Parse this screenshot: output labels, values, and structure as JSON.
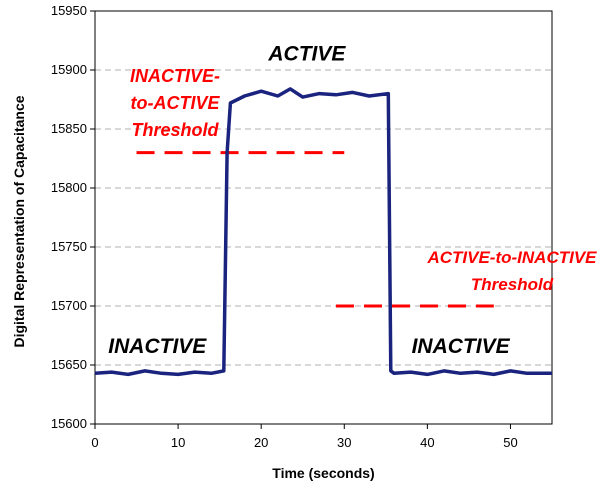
{
  "chart_data": {
    "type": "line",
    "xlabel": "Time (seconds)",
    "ylabel": "Digital Representation of Capacitance",
    "xlim": [
      0,
      55
    ],
    "ylim": [
      15600,
      15950
    ],
    "x_ticks": [
      "0",
      "10",
      "20",
      "30",
      "40",
      "50"
    ],
    "y_ticks": [
      "15600",
      "15650",
      "15700",
      "15750",
      "15800",
      "15850",
      "15900",
      "15950"
    ],
    "grid": "horizontal dashed",
    "series": [
      {
        "color": "#1a237e",
        "x": [
          0,
          2,
          4,
          6,
          8,
          10,
          12,
          14,
          15.5,
          15.9,
          16.3,
          18,
          20,
          22,
          23.5,
          25,
          27,
          29,
          31,
          33,
          35.3,
          35.6,
          36,
          38,
          40,
          42,
          44,
          46,
          48,
          50,
          52,
          55
        ],
        "y": [
          15643,
          15644,
          15642,
          15645,
          15643,
          15642,
          15644,
          15643,
          15645,
          15830,
          15872,
          15878,
          15882,
          15878,
          15884,
          15877,
          15880,
          15879,
          15881,
          15878,
          15880,
          15645,
          15643,
          15644,
          15642,
          15645,
          15643,
          15644,
          15642,
          15645,
          15643,
          15643
        ]
      }
    ],
    "thresholds": [
      {
        "x": [
          5,
          30
        ],
        "y": 15830,
        "color": "#ff0000",
        "label_lines": [
          "INACTIVE-",
          "to-ACTIVE",
          "Threshold"
        ]
      },
      {
        "x": [
          29,
          48
        ],
        "y": 15700,
        "color": "#ff0000",
        "label_lines": [
          "ACTIVE-to-INACTIVE",
          "Threshold"
        ]
      }
    ],
    "annotations": [
      {
        "text": "INACTIVE",
        "x": 7.5,
        "y": 15660
      },
      {
        "text": "ACTIVE",
        "x": 25.5,
        "y": 15908
      },
      {
        "text": "INACTIVE",
        "x": 44,
        "y": 15660
      }
    ]
  }
}
